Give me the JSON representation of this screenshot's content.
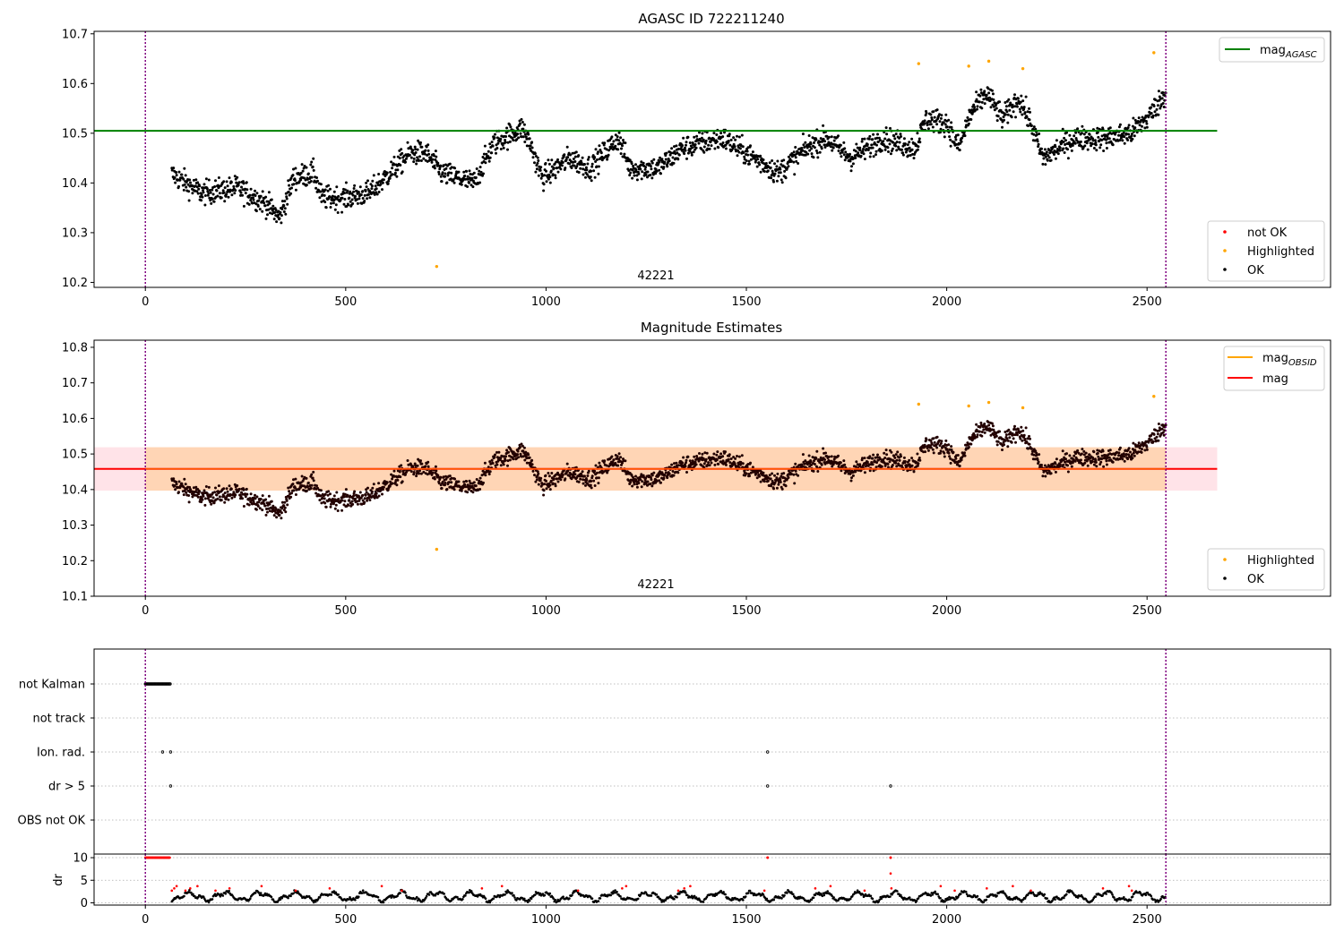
{
  "chart_data": [
    {
      "type": "scatter",
      "title": "AGASC ID 722211240",
      "xlabel": "",
      "ylabel": "",
      "xlim": [
        -128,
        2958
      ],
      "ylim": [
        10.19,
        10.705
      ],
      "x_ticks": [
        0,
        500,
        1000,
        1500,
        2000,
        2500
      ],
      "y_ticks": [
        10.2,
        10.3,
        10.4,
        10.5,
        10.6,
        10.7
      ],
      "annotation": "42221",
      "mag_agasc": 10.505,
      "vlines": [
        0,
        2547
      ],
      "highlighted_points": [
        [
          727,
          10.232
        ],
        [
          1930,
          10.64
        ],
        [
          2055,
          10.635
        ],
        [
          2105,
          10.645
        ],
        [
          2190,
          10.63
        ],
        [
          2517,
          10.662
        ]
      ],
      "legend_lines": [
        {
          "label": "mag",
          "sub": "AGASC",
          "color": "#008000"
        }
      ],
      "legend_points": [
        {
          "label": "not OK",
          "color": "#ff0000"
        },
        {
          "label": "Highlighted",
          "color": "#ffa500"
        },
        {
          "label": "OK",
          "color": "#000000"
        }
      ]
    },
    {
      "type": "scatter",
      "title": "Magnitude Estimates",
      "xlabel": "",
      "ylabel": "",
      "xlim": [
        -128,
        2958
      ],
      "ylim": [
        10.1,
        10.82
      ],
      "x_ticks": [
        0,
        500,
        1000,
        1500,
        2000,
        2500
      ],
      "y_ticks": [
        10.1,
        10.2,
        10.3,
        10.4,
        10.5,
        10.6,
        10.7,
        10.8
      ],
      "annotation": "42221",
      "mag": 10.458,
      "mag_band": [
        10.397,
        10.519
      ],
      "vlines": [
        0,
        2547
      ],
      "highlighted_points": [
        [
          727,
          10.232
        ],
        [
          1930,
          10.64
        ],
        [
          2055,
          10.635
        ],
        [
          2105,
          10.645
        ],
        [
          2190,
          10.63
        ],
        [
          2517,
          10.662
        ]
      ],
      "legend_lines": [
        {
          "label": "mag",
          "sub": "OBSID",
          "color": "#ffa500"
        },
        {
          "label": "mag",
          "sub": "",
          "color": "#ff0000"
        }
      ],
      "legend_points": [
        {
          "label": "Highlighted",
          "color": "#ffa500"
        },
        {
          "label": "OK",
          "color": "#000000"
        }
      ]
    },
    {
      "type": "scatter",
      "title": "",
      "flag_rows": [
        "not Kalman",
        "not track",
        "Ion. rad.",
        "dr > 5",
        "OBS not OK"
      ],
      "flag_points": {
        "not Kalman": {
          "from": 0,
          "to": 62,
          "step": 2
        },
        "not track": [],
        "Ion. rad.": [
          43,
          63,
          1553
        ],
        "dr > 5": [
          63,
          1553,
          1860
        ],
        "OBS not OK": []
      },
      "dr_ylabel": "dr",
      "dr_yticks": [
        0,
        5,
        10
      ],
      "dr_ylim": [
        -0.5,
        10.8
      ],
      "dr_clip_points": [
        1553,
        1860
      ],
      "dr_mid_point": [
        1860,
        6.5
      ],
      "xlim": [
        -128,
        2958
      ],
      "x_ticks": [
        0,
        500,
        1000,
        1500,
        2000,
        2500
      ],
      "vlines": [
        0,
        2547
      ]
    }
  ]
}
